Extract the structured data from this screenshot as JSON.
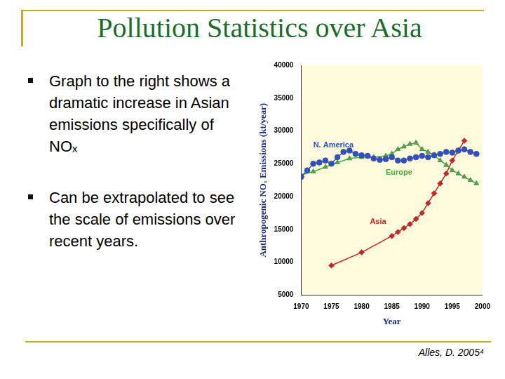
{
  "slide": {
    "title": "Pollution Statistics over Asia",
    "bullets": [
      "Graph to the right shows a dramatic increase in Asian emissions specifically of NOₓ",
      "Can be extrapolated to see the scale of emissions over recent years."
    ],
    "footer": "Alles, D. 2005⁴"
  },
  "chart_data": {
    "type": "line",
    "x_label": "Year",
    "y_label": "Anthropogenic NOₓ Emissions (kt/year)",
    "xlim": [
      1970,
      2000
    ],
    "xticks": [
      1970,
      1975,
      1980,
      1985,
      1990,
      1995,
      2000
    ],
    "ylim": [
      5000,
      40000
    ],
    "yticks": [
      5000,
      10000,
      15000,
      20000,
      25000,
      30000,
      35000,
      40000
    ],
    "grid": false,
    "series": [
      {
        "name": "N. America",
        "color": "#2a4fd0",
        "marker": "circle",
        "x": [
          1970,
          1971,
          1972,
          1973,
          1974,
          1975,
          1976,
          1977,
          1978,
          1979,
          1980,
          1981,
          1982,
          1983,
          1984,
          1985,
          1986,
          1987,
          1988,
          1989,
          1990,
          1991,
          1992,
          1993,
          1994,
          1995,
          1996,
          1997,
          1998,
          1999
        ],
        "values": [
          23000,
          24000,
          25000,
          25200,
          25500,
          25000,
          26000,
          26800,
          27000,
          26500,
          26300,
          26200,
          25800,
          25600,
          25700,
          26000,
          25500,
          25500,
          25800,
          26000,
          26200,
          26000,
          26300,
          26500,
          26800,
          26700,
          27000,
          27200,
          26800,
          26500
        ]
      },
      {
        "name": "Europe",
        "color": "#3cb43c",
        "marker": "triangle",
        "x": [
          1970,
          1972,
          1974,
          1976,
          1978,
          1980,
          1982,
          1984,
          1985,
          1986,
          1987,
          1988,
          1989,
          1990,
          1991,
          1992,
          1993,
          1994,
          1995,
          1996,
          1997,
          1998,
          1999
        ],
        "values": [
          23300,
          23800,
          24500,
          25200,
          25800,
          26000,
          26000,
          26200,
          26500,
          27200,
          27600,
          28000,
          28200,
          27200,
          26800,
          26300,
          25500,
          24800,
          24000,
          23500,
          23000,
          22500,
          22000
        ]
      },
      {
        "name": "Asia",
        "color": "#d42020",
        "marker": "diamond",
        "x": [
          1975,
          1980,
          1985,
          1986,
          1987,
          1988,
          1989,
          1990,
          1991,
          1992,
          1993,
          1994,
          1995,
          1996,
          1997
        ],
        "values": [
          9500,
          11500,
          14000,
          14600,
          15200,
          15800,
          16600,
          17500,
          19000,
          20500,
          22000,
          23500,
          25500,
          27000,
          28500
        ]
      }
    ]
  }
}
